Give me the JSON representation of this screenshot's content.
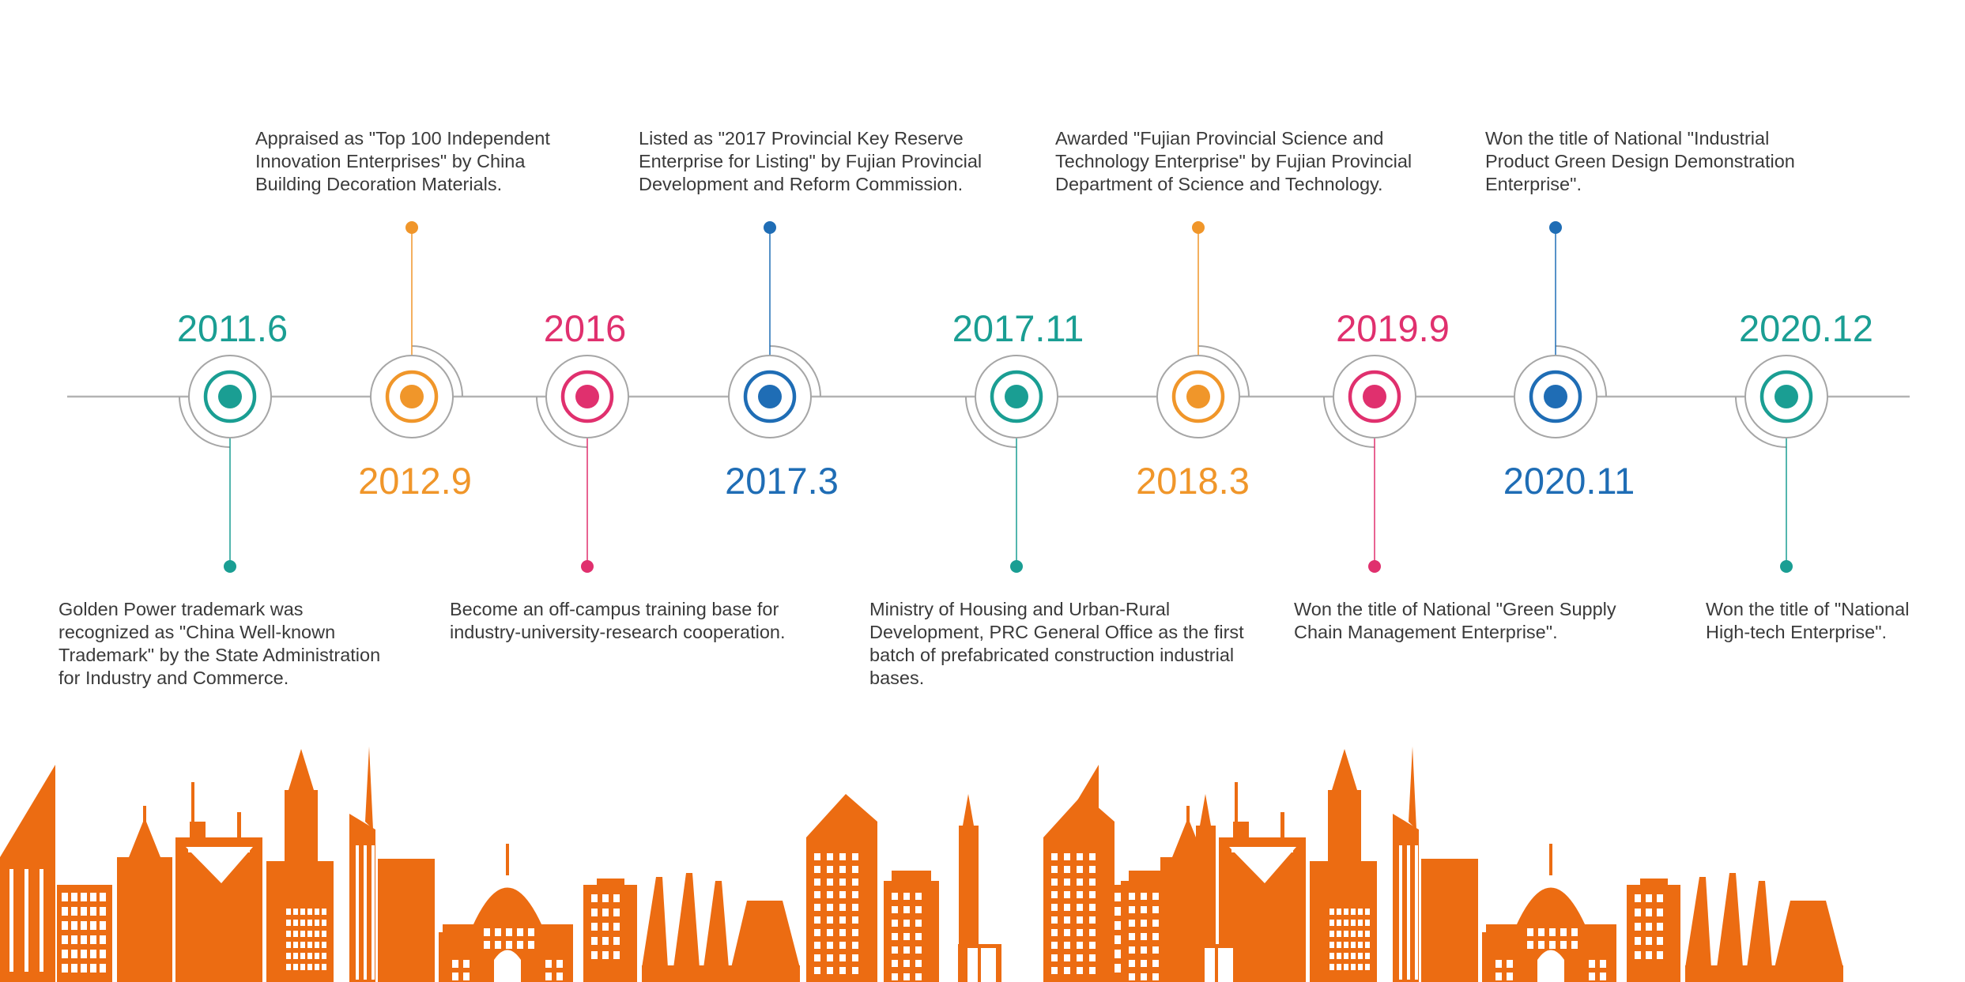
{
  "colors": {
    "teal": "#1a9e93",
    "orange": "#f0962a",
    "pink": "#e0306e",
    "blue": "#1f6db5",
    "axis": "#b3b3b3",
    "ring": "#a6a6a6",
    "skyline": "#ec6c12"
  },
  "milestones": [
    {
      "year": "2011.6",
      "color": "teal",
      "side": "below",
      "text": "Golden Power trademark was\nrecognized as \"China Well-known\nTrademark\" by the State Administration\nfor Industry and Commerce."
    },
    {
      "year": "2012.9",
      "color": "orange",
      "side": "above",
      "text": "Appraised as \"Top 100 Independent\nInnovation Enterprises\" by China\nBuilding Decoration Materials."
    },
    {
      "year": "2016",
      "color": "pink",
      "side": "below",
      "text": "Become an off-campus training base for\nindustry-university-research cooperation."
    },
    {
      "year": "2017.3",
      "color": "blue",
      "side": "above",
      "text": "Listed as \"2017 Provincial Key Reserve\nEnterprise for Listing\" by Fujian Provincial\nDevelopment and Reform Commission."
    },
    {
      "year": "2017.11",
      "color": "teal",
      "side": "below",
      "text": "Ministry of Housing and Urban-Rural\nDevelopment, PRC General Office as the first\nbatch of prefabricated construction industrial\nbases."
    },
    {
      "year": "2018.3",
      "color": "orange",
      "side": "above",
      "text": "Awarded \"Fujian Provincial Science and\nTechnology Enterprise\" by Fujian Provincial\nDepartment of Science and Technology."
    },
    {
      "year": "2019.9",
      "color": "pink",
      "side": "below",
      "text": "Won the title of National \"Green Supply\nChain Management Enterprise\"."
    },
    {
      "year": "2020.11",
      "color": "blue",
      "side": "above",
      "text": "Won the title of National \"Industrial\nProduct Green Design Demonstration\nEnterprise\"."
    },
    {
      "year": "2020.12",
      "color": "teal",
      "side": "below",
      "text": "Won the title of \"National\nHigh-tech Enterprise\"."
    }
  ]
}
